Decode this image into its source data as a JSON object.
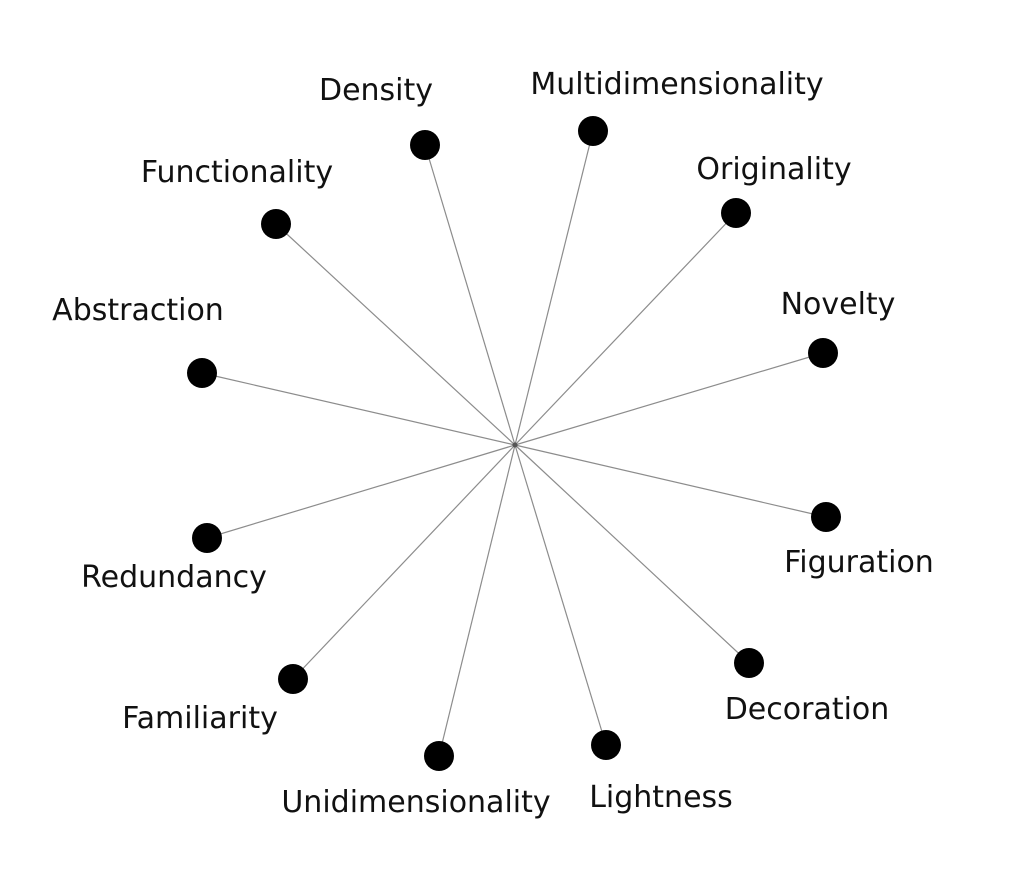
{
  "diagram": {
    "type": "radial-spoke",
    "colors": {
      "background": "#ffffff",
      "spoke": "#8c8c8c",
      "node": "#000000",
      "label": "#111111"
    },
    "nodes": [
      {
        "label": "Density"
      },
      {
        "label": "Multidimensionality"
      },
      {
        "label": "Functionality"
      },
      {
        "label": "Originality"
      },
      {
        "label": "Abstraction"
      },
      {
        "label": "Novelty"
      },
      {
        "label": "Redundancy"
      },
      {
        "label": "Figuration"
      },
      {
        "label": "Familiarity"
      },
      {
        "label": "Decoration"
      },
      {
        "label": "Unidimensionality"
      },
      {
        "label": "Lightness"
      }
    ]
  }
}
